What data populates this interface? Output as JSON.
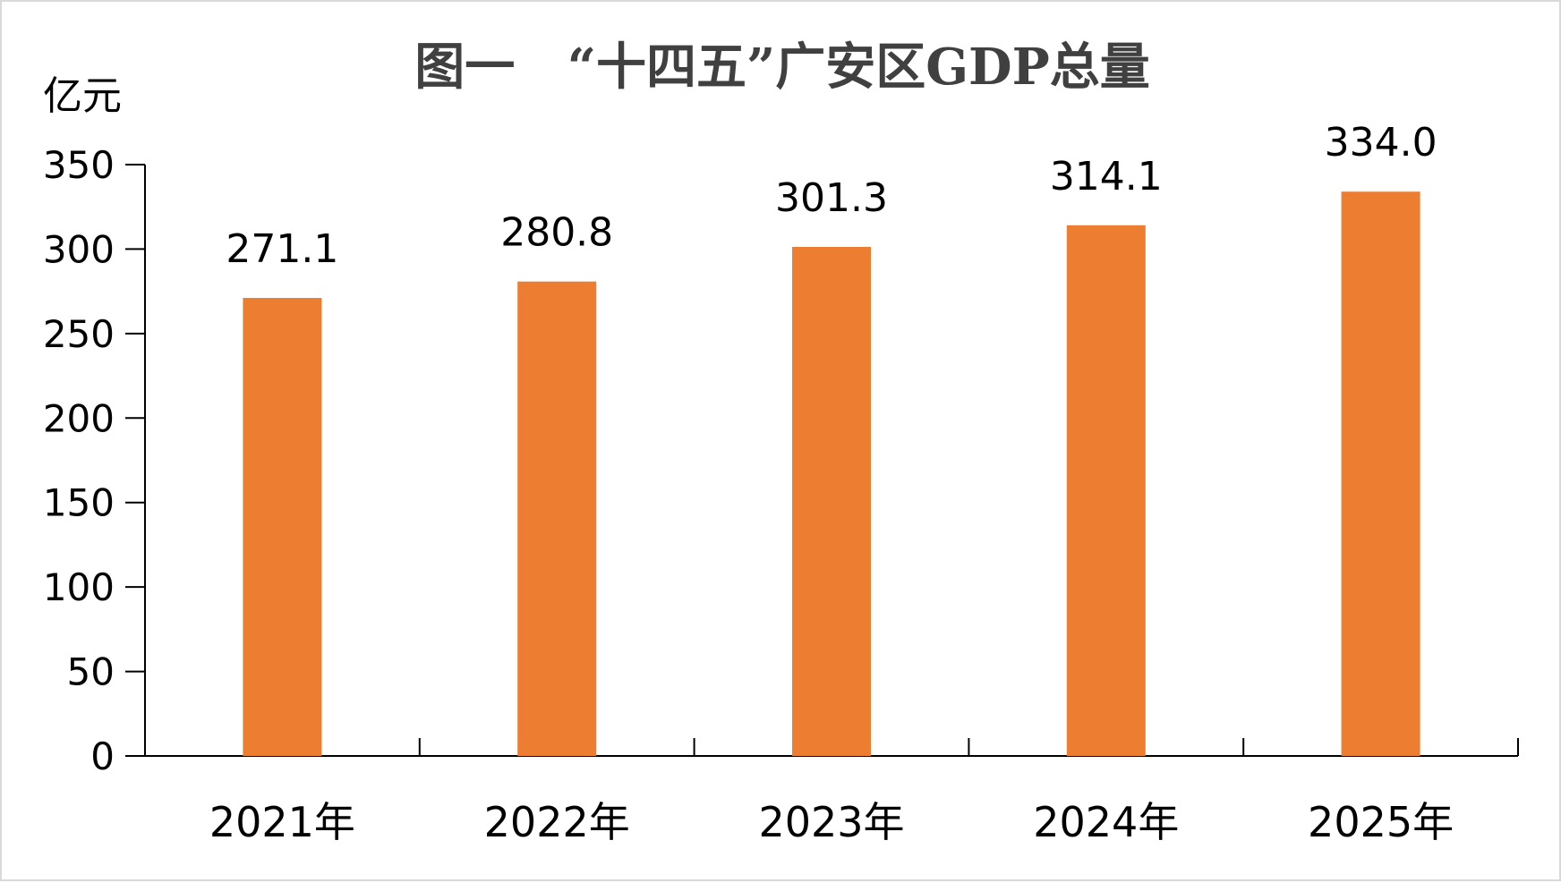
{
  "chart_data": {
    "type": "bar",
    "title": "图一   “十四五”广安区GDP总量",
    "ylabel": "亿元",
    "xlabel": "",
    "categories": [
      "2021年",
      "2022年",
      "2023年",
      "2024年",
      "2025年"
    ],
    "values": [
      271.1,
      280.8,
      301.3,
      314.1,
      334.0
    ],
    "value_labels": [
      "271.1",
      "280.8",
      "301.3",
      "314.1",
      "334.0"
    ],
    "ylim": [
      0,
      350
    ],
    "yticks": [
      0,
      50,
      100,
      150,
      200,
      250,
      300,
      350
    ],
    "grid": false,
    "legend": "none",
    "bar_color": "#ED7D31",
    "axis_color": "#000000"
  }
}
